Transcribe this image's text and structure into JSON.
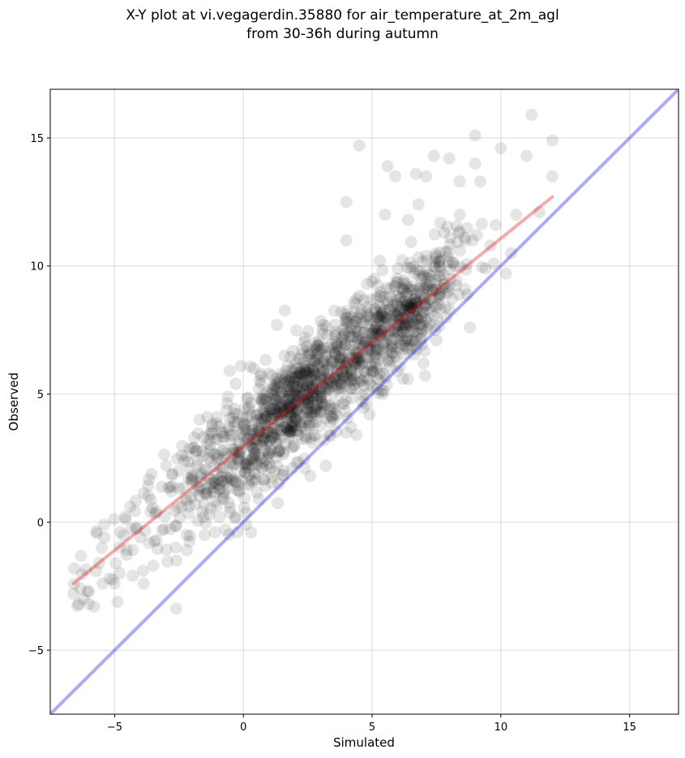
{
  "chart_data": {
    "type": "scatter",
    "title": "X-Y plot at vi.vegagerdin.35880 for air_temperature_at_2m_agl",
    "subtitle": "from 30-36h during autumn",
    "xlabel": "Simulated",
    "ylabel": "Observed",
    "xlim": [
      -7.5,
      16.9
    ],
    "ylim": [
      -7.5,
      16.9
    ],
    "xticks": [
      -5,
      0,
      5,
      10,
      15
    ],
    "yticks": [
      -5,
      0,
      5,
      10,
      15
    ],
    "xtick_labels": [
      "−5",
      "0",
      "5",
      "10",
      "15"
    ],
    "ytick_labels": [
      "−5",
      "0",
      "5",
      "10",
      "15"
    ],
    "grid": true,
    "point_color": "#000000",
    "point_alpha": 0.1,
    "series": [
      {
        "points_description": "approx. 1500 observations; dense cloud along fit line, plus scattered outliers",
        "approx_points": [
          [
            -6.6,
            -2.8
          ],
          [
            -6.4,
            -3.2
          ],
          [
            -6.2,
            -3.0
          ],
          [
            -6.0,
            -2.7
          ],
          [
            -6.0,
            -3.2
          ],
          [
            -5.8,
            -3.3
          ],
          [
            -5.6,
            -1.6
          ],
          [
            -5.5,
            -1.0
          ],
          [
            -5.4,
            -0.6
          ],
          [
            -5.4,
            -0.1
          ],
          [
            -5.2,
            -2.2
          ],
          [
            -5.0,
            -2.4
          ],
          [
            -4.8,
            -2.0
          ],
          [
            -4.6,
            0.2
          ],
          [
            -4.4,
            0.6
          ],
          [
            -4.3,
            -2.1
          ],
          [
            -4.0,
            -0.6
          ],
          [
            -3.9,
            -1.9
          ],
          [
            -3.6,
            0.4
          ],
          [
            -3.5,
            -1.7
          ],
          [
            -2.8,
            1.2
          ],
          [
            -2.6,
            -1.5
          ],
          [
            -2.5,
            2.0
          ],
          [
            -2.4,
            0.6
          ],
          [
            -2.3,
            2.4
          ],
          [
            -2.2,
            -0.5
          ],
          [
            -2.2,
            -1.1
          ],
          [
            -2.0,
            1.6
          ],
          [
            -1.8,
            2.2
          ],
          [
            -1.7,
            4.0
          ],
          [
            -1.6,
            0.4
          ],
          [
            -1.5,
            -0.5
          ],
          [
            -1.4,
            4.1
          ],
          [
            -1.3,
            3.0
          ],
          [
            -1.2,
            1.2
          ],
          [
            -1.1,
            -0.4
          ],
          [
            -1.0,
            2.6
          ],
          [
            -0.8,
            3.5
          ],
          [
            -0.8,
            0.9
          ],
          [
            -0.7,
            -0.3
          ],
          [
            -0.6,
            4.9
          ],
          [
            -0.5,
            1.8
          ],
          [
            -0.5,
            3.2
          ],
          [
            -0.3,
            0.2
          ],
          [
            -0.3,
            5.4
          ],
          [
            -0.2,
            2.5
          ],
          [
            -0.1,
            6.1
          ],
          [
            0.1,
            -0.1
          ],
          [
            0.1,
            3.6
          ],
          [
            0.2,
            1.5
          ],
          [
            0.2,
            4.4
          ],
          [
            0.3,
            -0.4
          ],
          [
            0.4,
            6.0
          ],
          [
            0.5,
            2.9
          ],
          [
            0.6,
            5.2
          ],
          [
            0.6,
            0.9
          ],
          [
            0.7,
            3.8
          ],
          [
            0.8,
            4.6
          ],
          [
            0.9,
            2.2
          ],
          [
            1.0,
            5.8
          ],
          [
            1.1,
            3.3
          ],
          [
            1.2,
            4.9
          ],
          [
            1.3,
            7.7
          ],
          [
            1.4,
            2.8
          ],
          [
            1.5,
            4.2
          ],
          [
            1.6,
            6.5
          ],
          [
            1.7,
            3.6
          ],
          [
            1.8,
            5.1
          ],
          [
            1.9,
            2.1
          ],
          [
            2.0,
            4.6
          ],
          [
            2.1,
            6.0
          ],
          [
            2.2,
            3.9
          ],
          [
            2.3,
            5.5
          ],
          [
            2.4,
            7.2
          ],
          [
            2.5,
            4.4
          ],
          [
            2.6,
            1.8
          ],
          [
            2.7,
            5.9
          ],
          [
            2.8,
            3.4
          ],
          [
            2.9,
            6.6
          ],
          [
            3.0,
            4.9
          ],
          [
            3.1,
            7.7
          ],
          [
            3.2,
            2.2
          ],
          [
            3.3,
            5.4
          ],
          [
            3.4,
            6.3
          ],
          [
            3.5,
            4.0
          ],
          [
            3.6,
            7.0
          ],
          [
            3.7,
            5.7
          ],
          [
            3.8,
            8.2
          ],
          [
            3.9,
            4.6
          ],
          [
            4.0,
            6.1
          ],
          [
            4.0,
            12.5
          ],
          [
            4.0,
            11.0
          ],
          [
            4.1,
            7.4
          ],
          [
            4.2,
            5.2
          ],
          [
            4.3,
            8.6
          ],
          [
            4.4,
            3.4
          ],
          [
            4.5,
            6.6
          ],
          [
            4.5,
            14.7
          ],
          [
            4.6,
            7.8
          ],
          [
            4.7,
            5.9
          ],
          [
            4.8,
            9.3
          ],
          [
            4.9,
            4.2
          ],
          [
            5.0,
            7.1
          ],
          [
            5.1,
            8.3
          ],
          [
            5.2,
            6.0
          ],
          [
            5.3,
            10.2
          ],
          [
            5.4,
            5.0
          ],
          [
            5.5,
            7.6
          ],
          [
            5.5,
            12.0
          ],
          [
            5.6,
            13.9
          ],
          [
            5.7,
            8.8
          ],
          [
            5.8,
            6.6
          ],
          [
            5.9,
            13.5
          ],
          [
            6.0,
            9.9
          ],
          [
            6.1,
            7.3
          ],
          [
            6.2,
            5.6
          ],
          [
            6.3,
            8.4
          ],
          [
            6.4,
            11.8
          ],
          [
            6.5,
            6.9
          ],
          [
            6.6,
            9.2
          ],
          [
            6.7,
            13.6
          ],
          [
            6.8,
            12.4
          ],
          [
            6.9,
            8.0
          ],
          [
            7.0,
            6.2
          ],
          [
            7.1,
            10.4
          ],
          [
            7.1,
            13.5
          ],
          [
            7.3,
            8.7
          ],
          [
            7.4,
            14.3
          ],
          [
            7.5,
            7.1
          ],
          [
            7.6,
            9.6
          ],
          [
            7.8,
            11.3
          ],
          [
            8.0,
            8.3
          ],
          [
            8.0,
            14.2
          ],
          [
            8.2,
            10.0
          ],
          [
            8.4,
            12.0
          ],
          [
            8.4,
            13.3
          ],
          [
            8.6,
            9.1
          ],
          [
            8.8,
            7.6
          ],
          [
            8.9,
            11.0
          ],
          [
            9.0,
            15.1
          ],
          [
            9.0,
            14.0
          ],
          [
            9.2,
            13.3
          ],
          [
            9.4,
            9.9
          ],
          [
            9.6,
            10.8
          ],
          [
            9.8,
            11.6
          ],
          [
            10.0,
            14.6
          ],
          [
            10.2,
            9.7
          ],
          [
            10.4,
            10.5
          ],
          [
            10.6,
            12.0
          ],
          [
            11.0,
            14.3
          ],
          [
            11.2,
            15.9
          ],
          [
            11.5,
            12.1
          ],
          [
            12.0,
            14.9
          ],
          [
            12.0,
            13.5
          ]
        ]
      }
    ],
    "lines": [
      {
        "name": "1:1 reference",
        "color": "#0000ee",
        "alpha": 0.33,
        "points": [
          [
            -7.5,
            -7.5
          ],
          [
            16.9,
            16.9
          ]
        ]
      },
      {
        "name": "regression fit",
        "color": "#ee0000",
        "alpha": 0.33,
        "points": [
          [
            -6.6,
            -2.4
          ],
          [
            12.0,
            12.7
          ]
        ]
      }
    ]
  }
}
